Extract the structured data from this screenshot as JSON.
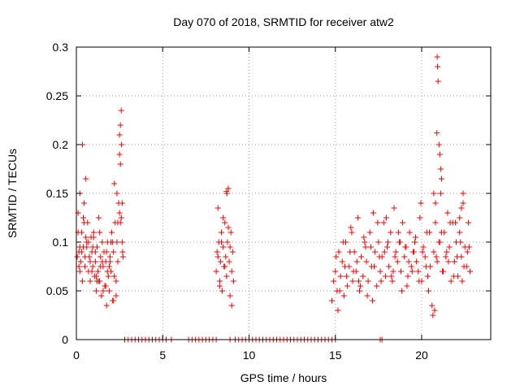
{
  "chart_data": {
    "type": "scatter",
    "title": "Day 070 of 2018, SRMTID for receiver atw2",
    "xlabel": "GPS time / hours",
    "ylabel": "SRMTID / TECUs",
    "xlim": [
      0,
      24
    ],
    "ylim": [
      0,
      0.3
    ],
    "grid": true,
    "marker": "+",
    "marker_color": "#ff0000",
    "x_ticks": [
      0,
      5,
      10,
      15,
      20
    ],
    "x_tick_labels": [
      "0",
      "5",
      "10",
      "15",
      "20"
    ],
    "y_ticks": [
      0,
      0.05,
      0.1,
      0.15,
      0.2,
      0.25,
      0.3
    ],
    "y_tick_labels": [
      "0",
      "0.05",
      "0.1",
      "0.15",
      "0.2",
      "0.25",
      "0.3"
    ],
    "series": [
      {
        "name": "SRMTID",
        "x": [
          0.05,
          0.1,
          0.15,
          0.2,
          0.25,
          0.3,
          0.35,
          0.4,
          0.45,
          0.5,
          0.55,
          0.6,
          0.65,
          0.7,
          0.75,
          0.8,
          0.85,
          0.9,
          0.95,
          1.0,
          1.05,
          1.1,
          1.15,
          1.2,
          1.25,
          1.3,
          1.35,
          1.4,
          1.45,
          1.5,
          1.55,
          1.6,
          1.65,
          1.7,
          1.75,
          1.8,
          1.85,
          1.9,
          1.95,
          2.0,
          2.05,
          2.1,
          2.15,
          2.2,
          2.25,
          2.3,
          2.35,
          2.4,
          2.45,
          2.5,
          2.55,
          2.6,
          2.65,
          2.7,
          0.1,
          0.2,
          0.3,
          0.45,
          0.6,
          0.8,
          1.0,
          1.2,
          1.4,
          1.6,
          1.8,
          2.0,
          2.2,
          2.4,
          2.5,
          2.55,
          2.6,
          2.62,
          2.65,
          2.68,
          0.2,
          0.4,
          0.5,
          0.7,
          0.9,
          1.1,
          1.3,
          1.5,
          1.7,
          1.9,
          2.1,
          2.3,
          2.5,
          0.15,
          0.35,
          0.55,
          0.75,
          0.95,
          1.15,
          1.35,
          1.55,
          1.75,
          1.95,
          2.15,
          2.35,
          2.55,
          8.1,
          8.15,
          8.2,
          8.25,
          8.3,
          8.35,
          8.4,
          8.45,
          8.5,
          8.55,
          8.6,
          8.65,
          8.7,
          8.75,
          8.8,
          8.85,
          8.9,
          8.95,
          9.0,
          9.05,
          9.1,
          8.2,
          8.4,
          8.6,
          8.8,
          9.0,
          8.7,
          8.72,
          8.3,
          8.5,
          8.9,
          14.8,
          14.9,
          15.0,
          15.1,
          15.2,
          15.3,
          15.4,
          15.5,
          15.6,
          15.7,
          15.8,
          15.9,
          16.0,
          16.1,
          16.2,
          16.3,
          16.4,
          16.5,
          16.6,
          16.7,
          16.8,
          16.9,
          17.0,
          17.1,
          17.2,
          17.3,
          17.4,
          17.5,
          17.6,
          17.7,
          17.8,
          17.9,
          18.0,
          18.1,
          18.2,
          18.3,
          18.4,
          18.5,
          18.6,
          18.7,
          18.8,
          18.9,
          19.0,
          19.1,
          19.2,
          19.3,
          19.4,
          19.5,
          19.6,
          19.7,
          19.8,
          19.9,
          20.0,
          20.1,
          20.2,
          20.3,
          20.4,
          20.5,
          20.6,
          20.7,
          20.8,
          20.9,
          21.0,
          21.1,
          21.2,
          21.3,
          21.4,
          21.5,
          21.6,
          21.7,
          21.8,
          21.9,
          22.0,
          22.1,
          22.2,
          22.3,
          22.4,
          22.5,
          22.6,
          22.7,
          22.8,
          15.05,
          15.25,
          15.45,
          15.65,
          15.85,
          16.05,
          16.25,
          16.45,
          16.65,
          16.85,
          17.05,
          17.25,
          17.45,
          17.65,
          17.85,
          18.05,
          18.25,
          18.45,
          18.65,
          18.85,
          19.05,
          19.25,
          19.45,
          19.65,
          19.85,
          20.05,
          20.25,
          20.45,
          20.65,
          20.85,
          21.05,
          21.25,
          21.45,
          21.65,
          21.85,
          22.05,
          22.25,
          22.45,
          22.65,
          15.15,
          15.55,
          15.95,
          16.35,
          16.75,
          17.15,
          17.55,
          17.95,
          18.35,
          18.75,
          19.15,
          19.55,
          19.95,
          20.35,
          20.75,
          21.15,
          21.55,
          21.95,
          22.35,
          22.75,
          20.9,
          20.92,
          20.95,
          20.88,
          21.0,
          21.05,
          21.1,
          21.15,
          20.7,
          20.8,
          22.3,
          22.4,
          22.2,
          2.8,
          3.0,
          3.2,
          3.4,
          3.6,
          3.8,
          4.0,
          4.2,
          4.4,
          4.6,
          4.8,
          5.0,
          5.2,
          5.5,
          6.5,
          6.7,
          6.9,
          7.1,
          7.3,
          7.5,
          7.7,
          7.9,
          8.1,
          8.9,
          9.2,
          9.4,
          9.6,
          9.8,
          10.0,
          10.2,
          10.4,
          10.6,
          10.8,
          11.0,
          11.2,
          11.4,
          11.6,
          11.8,
          12.0,
          12.2,
          12.4,
          12.6,
          12.8,
          13.0,
          13.2,
          13.4,
          13.6,
          13.8,
          14.0,
          14.2,
          14.4,
          14.6,
          14.8,
          15.0,
          17.6,
          17.7
        ],
        "y": [
          0.085,
          0.13,
          0.09,
          0.15,
          0.08,
          0.11,
          0.2,
          0.095,
          0.14,
          0.075,
          0.165,
          0.1,
          0.12,
          0.07,
          0.085,
          0.06,
          0.105,
          0.09,
          0.075,
          0.11,
          0.065,
          0.08,
          0.05,
          0.095,
          0.07,
          0.125,
          0.06,
          0.085,
          0.045,
          0.1,
          0.075,
          0.09,
          0.055,
          0.08,
          0.035,
          0.1,
          0.065,
          0.05,
          0.085,
          0.07,
          0.11,
          0.04,
          0.09,
          0.16,
          0.12,
          0.06,
          0.1,
          0.08,
          0.14,
          0.21,
          0.18,
          0.125,
          0.1,
          0.085,
          0.11,
          0.07,
          0.09,
          0.12,
          0.095,
          0.08,
          0.105,
          0.06,
          0.075,
          0.09,
          0.07,
          0.1,
          0.065,
          0.12,
          0.19,
          0.22,
          0.235,
          0.2,
          0.14,
          0.09,
          0.095,
          0.125,
          0.085,
          0.1,
          0.07,
          0.09,
          0.06,
          0.08,
          0.055,
          0.075,
          0.1,
          0.045,
          0.13,
          0.075,
          0.06,
          0.105,
          0.085,
          0.095,
          0.065,
          0.11,
          0.05,
          0.09,
          0.08,
          0.04,
          0.15,
          0.12,
          0.07,
          0.09,
          0.135,
          0.1,
          0.06,
          0.08,
          0.11,
          0.05,
          0.095,
          0.075,
          0.12,
          0.085,
          0.065,
          0.1,
          0.155,
          0.08,
          0.045,
          0.11,
          0.07,
          0.09,
          0.06,
          0.085,
          0.1,
          0.075,
          0.115,
          0.035,
          0.152,
          0.15,
          0.055,
          0.125,
          0.095,
          0.04,
          0.06,
          0.07,
          0.05,
          0.09,
          0.065,
          0.08,
          0.045,
          0.1,
          0.055,
          0.075,
          0.115,
          0.06,
          0.09,
          0.07,
          0.125,
          0.05,
          0.085,
          0.065,
          0.1,
          0.08,
          0.06,
          0.11,
          0.075,
          0.13,
          0.09,
          0.055,
          0.1,
          0.07,
          0.085,
          0.12,
          0.065,
          0.095,
          0.075,
          0.11,
          0.06,
          0.135,
          0.09,
          0.08,
          0.1,
          0.07,
          0.12,
          0.085,
          0.095,
          0.065,
          0.11,
          0.075,
          0.09,
          0.1,
          0.08,
          0.07,
          0.125,
          0.06,
          0.095,
          0.085,
          0.11,
          0.05,
          0.075,
          0.035,
          0.09,
          0.12,
          0.08,
          0.1,
          0.15,
          0.07,
          0.11,
          0.085,
          0.13,
          0.095,
          0.06,
          0.12,
          0.08,
          0.1,
          0.065,
          0.11,
          0.085,
          0.14,
          0.095,
          0.075,
          0.12,
          0.07,
          0.085,
          0.05,
          0.1,
          0.065,
          0.09,
          0.07,
          0.08,
          0.055,
          0.105,
          0.045,
          0.095,
          0.075,
          0.12,
          0.06,
          0.09,
          0.1,
          0.065,
          0.085,
          0.11,
          0.05,
          0.095,
          0.08,
          0.07,
          0.105,
          0.06,
          0.09,
          0.075,
          0.11,
          0.025,
          0.085,
          0.1,
          0.07,
          0.09,
          0.12,
          0.065,
          0.085,
          0.1,
          0.075,
          0.09,
          0.03,
          0.075,
          0.11,
          0.06,
          0.095,
          0.04,
          0.085,
          0.125,
          0.07,
          0.1,
          0.055,
          0.09,
          0.14,
          0.065,
          0.03,
          0.11,
          0.08,
          0.12,
          0.06,
          0.095,
          0.29,
          0.28,
          0.265,
          0.212,
          0.2,
          0.19,
          0.175,
          0.165,
          0.15,
          0.14,
          0.135,
          0.15,
          0.125,
          0,
          0,
          0,
          0,
          0,
          0,
          0,
          0,
          0,
          0,
          0,
          0,
          0,
          0,
          0,
          0,
          0,
          0,
          0,
          0,
          0,
          0,
          0,
          0,
          0,
          0,
          0,
          0,
          0,
          0,
          0,
          0,
          0,
          0,
          0,
          0,
          0,
          0,
          0,
          0,
          0,
          0,
          0,
          0,
          0,
          0,
          0,
          0,
          0,
          0,
          0,
          0,
          0,
          0,
          0,
          0
        ]
      }
    ]
  }
}
